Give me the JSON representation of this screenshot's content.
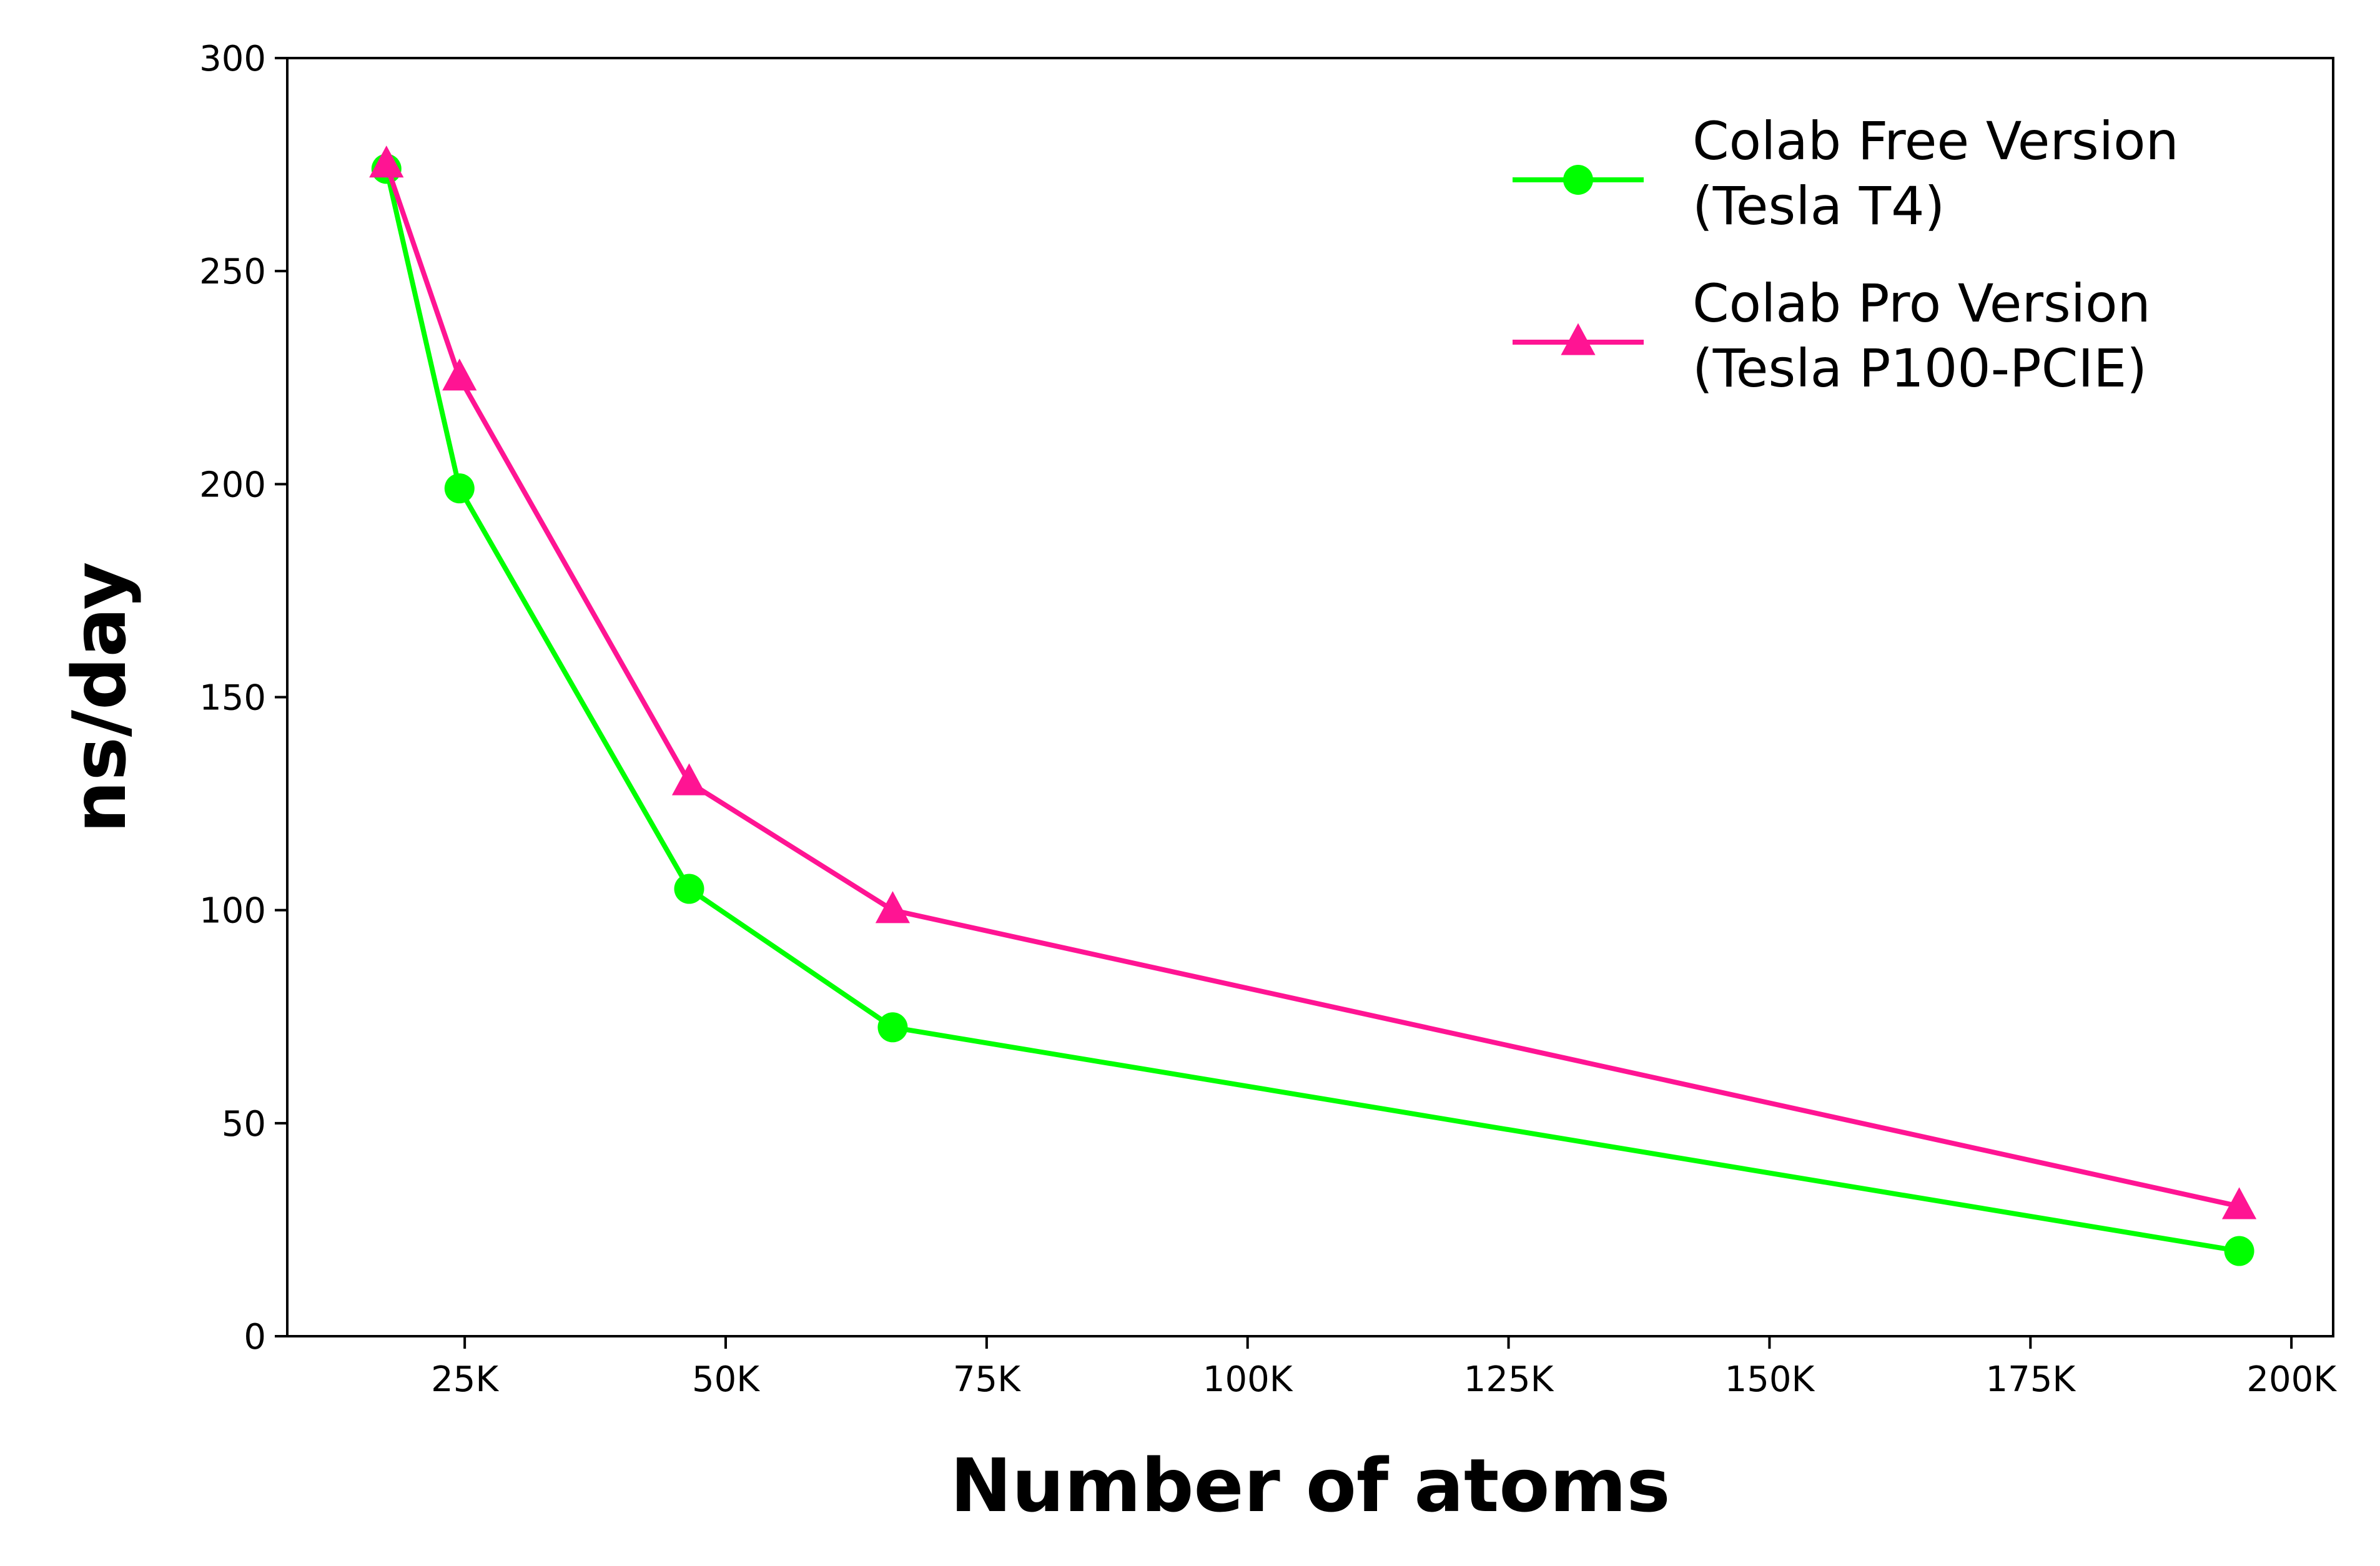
{
  "chart_data": {
    "type": "line",
    "title": "",
    "xlabel": "Number of atoms",
    "ylabel": "ns/day",
    "xlim": [
      8000,
      204000
    ],
    "ylim": [
      0,
      300
    ],
    "xticks": [
      25000,
      50000,
      75000,
      100000,
      125000,
      150000,
      175000,
      200000
    ],
    "xtick_labels": [
      "25K",
      "50K",
      "75K",
      "100K",
      "125K",
      "150K",
      "175K",
      "200K"
    ],
    "yticks": [
      0,
      50,
      100,
      150,
      200,
      250,
      300
    ],
    "ytick_labels": [
      "0",
      "50",
      "100",
      "150",
      "200",
      "250",
      "300"
    ],
    "grid": false,
    "legend_position": "top-right",
    "x": [
      17500,
      24500,
      46500,
      66000,
      195000
    ],
    "series": [
      {
        "name": "Colab Free Version\n(Tesla T4)",
        "name_lines": [
          "Colab Free Version",
          "(Tesla T4)"
        ],
        "color": "#00ff00",
        "marker": "circle",
        "values": [
          274,
          199,
          105,
          72.5,
          20
        ]
      },
      {
        "name": "Colab Pro Version\n(Tesla P100-PCIE)",
        "name_lines": [
          "Colab Pro Version",
          "(Tesla P100-PCIE)"
        ],
        "color": "#ff1493",
        "marker": "triangle",
        "values": [
          275,
          225,
          130,
          100,
          30.5
        ]
      }
    ]
  }
}
